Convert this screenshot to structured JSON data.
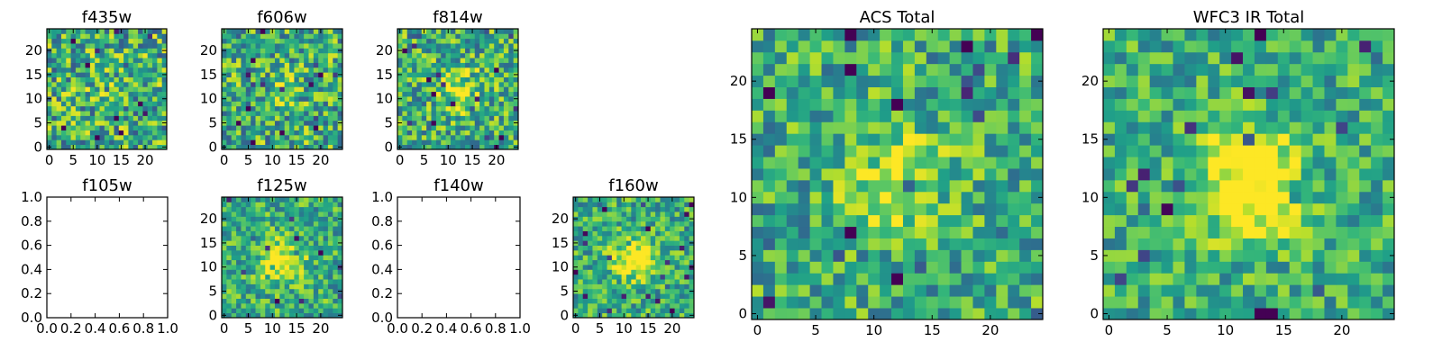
{
  "colors": {
    "background": "#ffffff",
    "axis": "#000000",
    "colormap": "viridis"
  },
  "chart_data": [
    {
      "type": "heatmap",
      "title": "f435w",
      "has_data": true,
      "grid_size": 25,
      "xlim": [
        0,
        24
      ],
      "ylim": [
        0,
        24
      ],
      "xticks": [
        "0",
        "5",
        "10",
        "15",
        "20"
      ],
      "yticks": [
        "0",
        "5",
        "10",
        "15",
        "20"
      ],
      "source_peak": [
        12,
        12
      ],
      "peak_strength": 0.05,
      "noise": 0.36,
      "seed": 11
    },
    {
      "type": "heatmap",
      "title": "f606w",
      "has_data": true,
      "grid_size": 25,
      "xlim": [
        0,
        24
      ],
      "ylim": [
        0,
        24
      ],
      "xticks": [
        "0",
        "5",
        "10",
        "15",
        "20"
      ],
      "yticks": [
        "0",
        "5",
        "10",
        "15",
        "20"
      ],
      "source_peak": [
        12,
        12
      ],
      "peak_strength": 0.1,
      "noise": 0.34,
      "seed": 23
    },
    {
      "type": "heatmap",
      "title": "f814w",
      "has_data": true,
      "grid_size": 25,
      "xlim": [
        0,
        24
      ],
      "ylim": [
        0,
        24
      ],
      "xticks": [
        "0",
        "5",
        "10",
        "15",
        "20"
      ],
      "yticks": [
        "0",
        "5",
        "10",
        "15",
        "20"
      ],
      "source_peak": [
        12,
        12
      ],
      "peak_strength": 0.3,
      "noise": 0.32,
      "seed": 37
    },
    {
      "type": "heatmap",
      "title": "f105w",
      "has_data": false,
      "xlim": [
        0,
        1
      ],
      "ylim": [
        0,
        1
      ],
      "xticks": [
        "0.0",
        "0.2",
        "0.4",
        "0.6",
        "0.8",
        "1.0"
      ],
      "yticks": [
        "0.0",
        "0.2",
        "0.4",
        "0.6",
        "0.8",
        "1.0"
      ]
    },
    {
      "type": "heatmap",
      "title": "f125w",
      "has_data": true,
      "grid_size": 25,
      "xlim": [
        0,
        24
      ],
      "ylim": [
        0,
        24
      ],
      "xticks": [
        "0",
        "5",
        "10",
        "15",
        "20"
      ],
      "yticks": [
        "0",
        "5",
        "10",
        "15",
        "20"
      ],
      "source_peak": [
        12,
        11
      ],
      "peak_strength": 0.45,
      "noise": 0.26,
      "seed": 53
    },
    {
      "type": "heatmap",
      "title": "f140w",
      "has_data": false,
      "xlim": [
        0,
        1
      ],
      "ylim": [
        0,
        1
      ],
      "xticks": [
        "0.0",
        "0.2",
        "0.4",
        "0.6",
        "0.8",
        "1.0"
      ],
      "yticks": [
        "0.0",
        "0.2",
        "0.4",
        "0.6",
        "0.8",
        "1.0"
      ]
    },
    {
      "type": "heatmap",
      "title": "f160w",
      "has_data": true,
      "grid_size": 25,
      "xlim": [
        0,
        24
      ],
      "ylim": [
        0,
        24
      ],
      "xticks": [
        "0",
        "5",
        "10",
        "15",
        "20"
      ],
      "yticks": [
        "0",
        "5",
        "10",
        "15",
        "20"
      ],
      "source_peak": [
        12,
        12
      ],
      "peak_strength": 0.45,
      "noise": 0.26,
      "seed": 71
    },
    {
      "type": "heatmap",
      "title": "ACS Total",
      "has_data": true,
      "grid_size": 25,
      "xlim": [
        0,
        24
      ],
      "ylim": [
        0,
        24
      ],
      "xticks": [
        "0",
        "5",
        "10",
        "15",
        "20"
      ],
      "yticks": [
        "0",
        "5",
        "10",
        "15",
        "20"
      ],
      "source_peak": [
        12,
        12
      ],
      "peak_strength": 0.3,
      "noise": 0.28,
      "seed": 89
    },
    {
      "type": "heatmap",
      "title": "WFC3 IR Total",
      "has_data": true,
      "grid_size": 25,
      "xlim": [
        0,
        24
      ],
      "ylim": [
        0,
        24
      ],
      "xticks": [
        "0",
        "5",
        "10",
        "15",
        "20"
      ],
      "yticks": [
        "0",
        "5",
        "10",
        "15",
        "20"
      ],
      "source_peak": [
        12,
        11
      ],
      "peak_strength": 0.6,
      "noise": 0.24,
      "seed": 97
    }
  ]
}
